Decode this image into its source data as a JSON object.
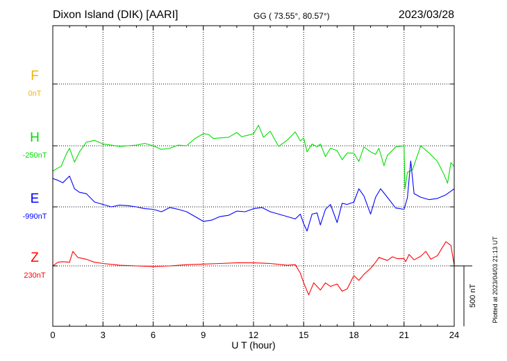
{
  "header": {
    "station": "Dixon Island (DIK)  [AARI]",
    "coords": "GG ( 73.55°,  80.57°)",
    "date": "2023/03/28"
  },
  "footer": {
    "plotted": "Plotted at 2023/04/03 21:13 UT"
  },
  "chart_data": {
    "type": "line",
    "title": "Dixon Island (DIK)  [AARI]",
    "xlabel": "U T (hour)",
    "xlim": [
      0,
      24
    ],
    "xticks": [
      0,
      3,
      6,
      9,
      12,
      15,
      18,
      21,
      24
    ],
    "grid": true,
    "scale_bar_label": "500 nT",
    "scale_bar_nT": 500,
    "series": [
      {
        "name": "F",
        "baseline_label": "0nT",
        "color": "#f0b400",
        "x": [],
        "y": []
      },
      {
        "name": "H",
        "baseline_label": "-250nT",
        "color": "#00dd00",
        "x": [
          0,
          0.3,
          0.5,
          0.8,
          1.0,
          1.3,
          1.6,
          2.0,
          2.5,
          3,
          3.5,
          4,
          4.5,
          5,
          5.5,
          6,
          6.5,
          7,
          7.5,
          8,
          8.5,
          9,
          9.3,
          9.6,
          10,
          10.5,
          11,
          11.3,
          11.6,
          12,
          12.3,
          12.6,
          13,
          13.5,
          14,
          14.5,
          14.8,
          15,
          15.2,
          15.5,
          15.8,
          16,
          16.3,
          16.6,
          17,
          17.3,
          17.6,
          18,
          18.3,
          18.6,
          19,
          19.3,
          19.5,
          19.8,
          20,
          20.5,
          21,
          21.05,
          21.2,
          21.5,
          22,
          22.5,
          23,
          23.4,
          23.6,
          23.8,
          24
        ],
        "y": [
          -210,
          -185,
          -170,
          -70,
          -20,
          -135,
          -50,
          30,
          45,
          15,
          5,
          -5,
          0,
          5,
          20,
          0,
          -30,
          -20,
          5,
          0,
          60,
          100,
          95,
          60,
          65,
          70,
          110,
          75,
          85,
          100,
          170,
          70,
          120,
          -5,
          45,
          115,
          40,
          65,
          -50,
          15,
          -10,
          15,
          -90,
          -20,
          -40,
          -115,
          -60,
          -60,
          -130,
          -10,
          -50,
          -70,
          -20,
          -165,
          -80,
          -10,
          0,
          -360,
          -220,
          -200,
          0,
          -60,
          -130,
          -240,
          -310,
          -140,
          -170
        ]
      },
      {
        "name": "E",
        "baseline_label": "-990nT",
        "color": "#0000ff",
        "x": [
          0,
          0.3,
          0.6,
          1.0,
          1.3,
          1.6,
          2,
          2.5,
          3,
          3.5,
          4,
          4.5,
          5,
          5.5,
          6,
          6.5,
          7,
          7.5,
          8,
          8.5,
          9,
          9.5,
          10,
          10.5,
          11,
          11.5,
          12,
          12.5,
          13,
          13.5,
          14,
          14.5,
          14.8,
          15,
          15.2,
          15.5,
          15.8,
          16,
          16.3,
          16.6,
          17,
          17.3,
          17.6,
          18,
          18.3,
          18.6,
          19,
          19.3,
          19.6,
          20,
          20.5,
          21,
          21.2,
          21.4,
          21.6,
          22,
          22.5,
          23,
          23.5,
          24
        ],
        "y": [
          235,
          220,
          200,
          255,
          150,
          120,
          110,
          40,
          20,
          0,
          15,
          10,
          0,
          -15,
          -20,
          -40,
          -5,
          -20,
          -40,
          -80,
          -120,
          -110,
          -80,
          -70,
          -35,
          -40,
          -15,
          -5,
          -40,
          -60,
          -80,
          -100,
          -60,
          -140,
          -200,
          -60,
          -50,
          -150,
          -20,
          20,
          -130,
          30,
          20,
          40,
          150,
          90,
          -60,
          80,
          150,
          80,
          -10,
          -20,
          75,
          380,
          110,
          80,
          60,
          70,
          100,
          150
        ]
      },
      {
        "name": "Z",
        "baseline_label": "230nT",
        "color": "#ff0000",
        "x": [
          0,
          0.3,
          0.6,
          1.0,
          1.2,
          1.5,
          2.0,
          2.5,
          3,
          4,
          5,
          6,
          7,
          8,
          9,
          10,
          11,
          12,
          13,
          14,
          14.5,
          14.8,
          15,
          15.3,
          15.6,
          16,
          16.3,
          16.6,
          17,
          17.3,
          17.6,
          18,
          18.3,
          18.6,
          19,
          19.3,
          19.5,
          20,
          20.3,
          20.6,
          21,
          21.1,
          21.3,
          21.6,
          22,
          22.3,
          22.6,
          23,
          23.5,
          23.8,
          24
        ],
        "y": [
          0,
          30,
          35,
          30,
          120,
          70,
          55,
          30,
          20,
          5,
          0,
          -5,
          0,
          10,
          15,
          20,
          25,
          25,
          20,
          5,
          10,
          -60,
          -140,
          -240,
          -140,
          -200,
          -140,
          -170,
          -150,
          -210,
          -190,
          -80,
          -120,
          -70,
          -20,
          30,
          70,
          45,
          75,
          60,
          60,
          35,
          95,
          50,
          80,
          120,
          55,
          85,
          200,
          170,
          5
        ]
      }
    ]
  }
}
